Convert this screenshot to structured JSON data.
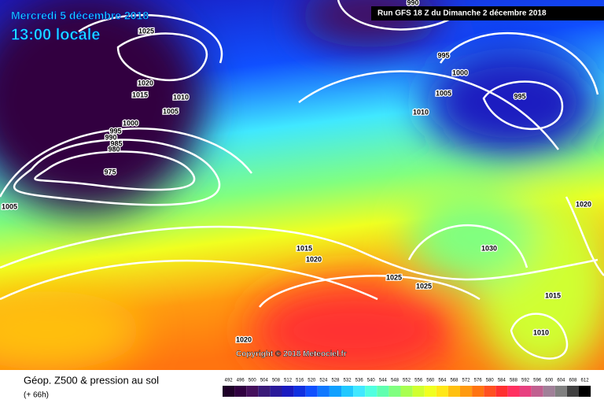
{
  "header": {
    "date": "Mercredi 5 décembre 2018",
    "time": "13:00 locale",
    "run": "Run GFS 18 Z du Dimanche 2 décembre 2018"
  },
  "isobar_labels": [
    "990",
    "1025",
    "995",
    "1000",
    "1020",
    "1015",
    "1010",
    "1005",
    "1005",
    "995",
    "1010",
    "1000",
    "995",
    "990",
    "985",
    "980",
    "975",
    "1005",
    "1020",
    "1015",
    "1020",
    "1030",
    "1025",
    "1025",
    "1015",
    "1010",
    "1020"
  ],
  "copyright": "Copyright © 2018 Meteociel.fr",
  "footer": {
    "title": "Géop. Z500 & pression au sol",
    "lead": "(+ 66h)"
  },
  "scale": {
    "labels": [
      492,
      496,
      500,
      504,
      508,
      512,
      516,
      520,
      524,
      528,
      532,
      536,
      540,
      544,
      548,
      552,
      556,
      560,
      564,
      568,
      572,
      576,
      580,
      584,
      588,
      592,
      596,
      600,
      604,
      608,
      612
    ],
    "colors": [
      "#1e0028",
      "#300040",
      "#45105c",
      "#3a1a78",
      "#2a1a9a",
      "#1a1ac0",
      "#1030e0",
      "#1050ff",
      "#1078ff",
      "#10a0ff",
      "#20c8ff",
      "#40e8ff",
      "#50ffe0",
      "#60ffb0",
      "#80ff80",
      "#a8ff50",
      "#d0ff30",
      "#f0ff20",
      "#ffe818",
      "#ffc010",
      "#ff9a10",
      "#ff7410",
      "#ff5020",
      "#ff3030",
      "#ff3060",
      "#e84080",
      "#c06090",
      "#a08098",
      "#808080",
      "#404040",
      "#000000"
    ]
  }
}
